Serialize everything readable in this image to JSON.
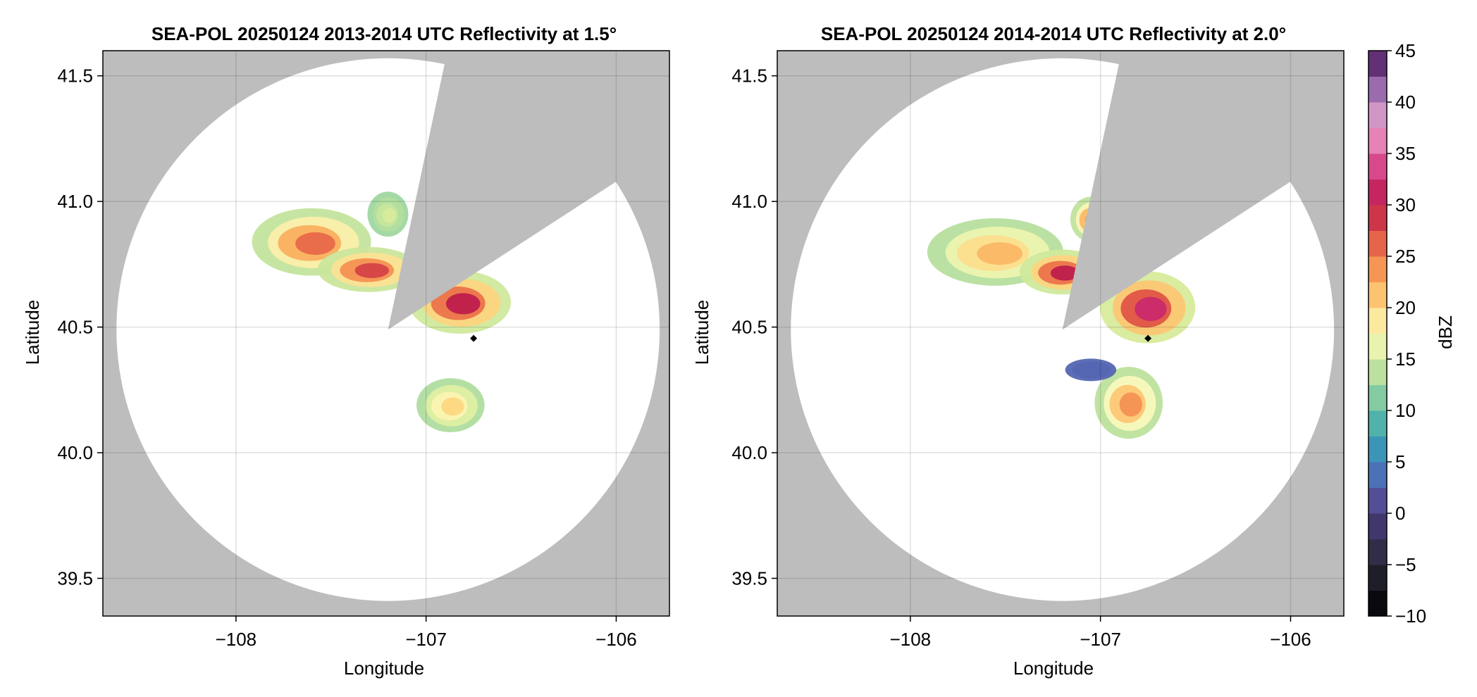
{
  "chart_data": [
    {
      "type": "heatmap",
      "title": "SEA-POL 20250124 2013-2014 UTC Reflectivity at 1.5°",
      "xlabel": "Longitude",
      "ylabel": "Latitude",
      "xlim": [
        -108.7,
        -105.72
      ],
      "ylim": [
        39.35,
        41.6
      ],
      "xticks": [
        -108,
        -107,
        -106
      ],
      "yticks": [
        39.5,
        40.0,
        40.5,
        41.0,
        41.5
      ],
      "xtick_labels": [
        "−108",
        "−107",
        "−106"
      ],
      "ytick_labels": [
        "39.5",
        "40.0",
        "40.5",
        "41.0",
        "41.5"
      ],
      "grid": true,
      "radar_site": {
        "lon": -107.2,
        "lat": 40.49
      },
      "coverage_radius_deg_lat": 1.08,
      "blocked_sector_bearings_deg": [
        [
          12,
          57
        ]
      ],
      "marker": {
        "lon": -106.75,
        "lat": 40.455
      },
      "echoes": [
        {
          "lon": -107.6,
          "lat": 40.84,
          "rlon": 0.35,
          "rlat": 0.15,
          "peak_dbz": 26
        },
        {
          "lon": -107.3,
          "lat": 40.73,
          "rlon": 0.3,
          "rlat": 0.1,
          "peak_dbz": 28
        },
        {
          "lon": -106.82,
          "lat": 40.6,
          "rlon": 0.3,
          "rlat": 0.14,
          "peak_dbz": 30
        },
        {
          "lon": -107.2,
          "lat": 40.95,
          "rlon": 0.12,
          "rlat": 0.1,
          "peak_dbz": 15
        },
        {
          "lon": -106.87,
          "lat": 40.19,
          "rlon": 0.2,
          "rlat": 0.12,
          "peak_dbz": 20
        }
      ]
    },
    {
      "type": "heatmap",
      "title": "SEA-POL 20250124 2014-2014 UTC Reflectivity at 2.0°",
      "xlabel": "Longitude",
      "ylabel": "Latitude",
      "xlim": [
        -108.7,
        -105.72
      ],
      "ylim": [
        39.35,
        41.6
      ],
      "xticks": [
        -108,
        -107,
        -106
      ],
      "yticks": [
        39.5,
        40.0,
        40.5,
        41.0,
        41.5
      ],
      "xtick_labels": [
        "−108",
        "−107",
        "−106"
      ],
      "ytick_labels": [
        "39.5",
        "40.0",
        "40.5",
        "41.0",
        "41.5"
      ],
      "grid": true,
      "radar_site": {
        "lon": -107.2,
        "lat": 40.49
      },
      "coverage_radius_deg_lat": 1.08,
      "blocked_sector_bearings_deg": [
        [
          12,
          57
        ]
      ],
      "marker": {
        "lon": -106.75,
        "lat": 40.455
      },
      "echoes": [
        {
          "lon": -107.55,
          "lat": 40.8,
          "rlon": 0.4,
          "rlat": 0.15,
          "peak_dbz": 22
        },
        {
          "lon": -107.2,
          "lat": 40.72,
          "rlon": 0.25,
          "rlat": 0.1,
          "peak_dbz": 30
        },
        {
          "lon": -107.05,
          "lat": 40.93,
          "rlon": 0.12,
          "rlat": 0.1,
          "peak_dbz": 25
        },
        {
          "lon": -106.75,
          "lat": 40.58,
          "rlon": 0.28,
          "rlat": 0.16,
          "peak_dbz": 32
        },
        {
          "lon": -106.85,
          "lat": 40.2,
          "rlon": 0.2,
          "rlat": 0.16,
          "peak_dbz": 24
        },
        {
          "lon": -107.05,
          "lat": 40.33,
          "rlon": 0.15,
          "rlat": 0.05,
          "peak_dbz": 3
        }
      ]
    }
  ],
  "colorbar": {
    "label": "dBZ",
    "min": -10,
    "max": 45,
    "step": 2.5,
    "ticks": [
      -10,
      -5,
      0,
      5,
      10,
      15,
      20,
      25,
      30,
      35,
      40,
      45
    ],
    "tick_labels": [
      "−10",
      "−5",
      "0",
      "5",
      "10",
      "15",
      "20",
      "25",
      "30",
      "35",
      "40",
      "45"
    ]
  },
  "colors": {
    "blocked": "#bdbdbd",
    "coverage": "#ffffff",
    "grid": "#cfcfcf",
    "marker": "#000000"
  }
}
